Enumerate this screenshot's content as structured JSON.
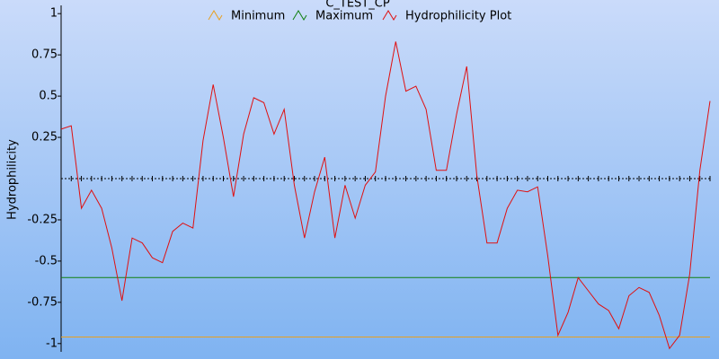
{
  "chart_data": {
    "type": "line",
    "title": "C_TEST_CP",
    "y_label": "Hydrophilicity",
    "ylim": [
      -1.05,
      1.05
    ],
    "yticks": [
      -1,
      -0.75,
      -0.5,
      -0.25,
      0.25,
      0.5,
      0.75,
      1
    ],
    "legend": "top",
    "series": [
      {
        "name": "Minimum",
        "color": "#e8a020",
        "values": [
          -0.96
        ]
      },
      {
        "name": "Maximum",
        "color": "#108010",
        "values": [
          -0.6
        ]
      },
      {
        "name": "Hydrophilicity Plot",
        "color": "#e01010",
        "values": [
          0.3,
          0.32,
          -0.18,
          -0.07,
          -0.18,
          -0.42,
          -0.74,
          -0.36,
          -0.39,
          -0.48,
          -0.51,
          -0.32,
          -0.27,
          -0.3,
          0.23,
          0.57,
          0.25,
          -0.11,
          0.27,
          0.49,
          0.46,
          0.27,
          0.42,
          -0.04,
          -0.36,
          -0.08,
          0.13,
          -0.36,
          -0.04,
          -0.24,
          -0.04,
          0.04,
          0.5,
          0.83,
          0.53,
          0.56,
          0.42,
          0.05,
          0.05,
          0.39,
          0.68,
          0.02,
          -0.39,
          -0.39,
          -0.18,
          -0.07,
          -0.08,
          -0.05,
          -0.47,
          -0.95,
          -0.81,
          -0.6,
          -0.68,
          -0.76,
          -0.8,
          -0.91,
          -0.71,
          -0.66,
          -0.69,
          -0.83,
          -1.03,
          -0.95,
          -0.58,
          0.05,
          0.47
        ]
      }
    ]
  }
}
